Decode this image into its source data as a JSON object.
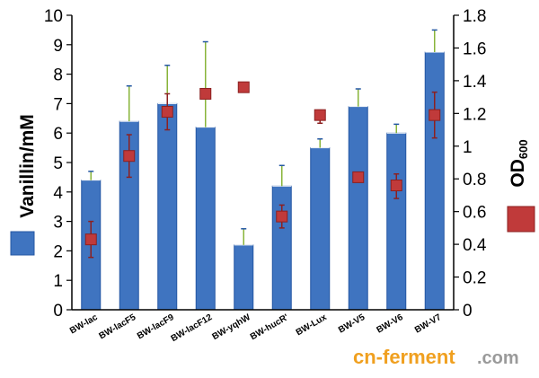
{
  "chart_data": {
    "type": "bar",
    "categories": [
      "BW-lac",
      "BW-lacF5",
      "BW-lacF9",
      "BW-lacF12",
      "BW-yqhW",
      "BW-hucR'",
      "BW-Lux",
      "BW-V5",
      "BW-V6",
      "BW-V7"
    ],
    "series": [
      {
        "name": "Vanillin/mM",
        "axis": "left",
        "render": "bar",
        "values": [
          4.4,
          6.4,
          7.0,
          6.2,
          2.2,
          4.2,
          5.5,
          6.9,
          6.0,
          8.75
        ],
        "error_upper": [
          4.7,
          7.6,
          8.3,
          9.1,
          2.75,
          4.9,
          5.8,
          7.5,
          6.3,
          9.5
        ],
        "error_lower": [
          4.4,
          6.4,
          7.0,
          6.2,
          2.2,
          4.2,
          5.5,
          6.9,
          6.0,
          8.75
        ]
      },
      {
        "name": "OD600",
        "axis": "right",
        "render": "marker",
        "values": [
          0.43,
          0.94,
          1.21,
          1.32,
          1.36,
          0.57,
          1.19,
          0.81,
          0.76,
          1.19
        ],
        "error_upper": [
          0.54,
          1.07,
          1.32,
          null,
          null,
          0.64,
          1.22,
          null,
          0.83,
          1.33
        ],
        "error_lower": [
          0.32,
          0.81,
          1.1,
          null,
          null,
          0.5,
          1.14,
          null,
          0.68,
          1.05
        ]
      }
    ],
    "ylabel": "Vanillin/mM",
    "ylim": [
      0,
      10
    ],
    "yticks": [
      "0",
      "1",
      "2",
      "3",
      "4",
      "5",
      "6",
      "7",
      "8",
      "9",
      "10"
    ],
    "y2label": "OD",
    "y2label_sub": "600",
    "y2lim": [
      0,
      1.8
    ],
    "y2ticks": [
      "0",
      "0.2",
      "0.4",
      "0.6",
      "0.8",
      "1",
      "1.2",
      "1.4",
      "1.6",
      "1.8"
    ],
    "grid": false,
    "legend": "left-and-right-outside",
    "colors": {
      "bar": "#3f74c0",
      "bar_dark": "#2457a3",
      "bar_error": "#88b43a",
      "marker": "#c03a3a",
      "marker_error": "#8c2020"
    }
  },
  "watermark": {
    "text_a": "cn-ferment",
    "text_b": ".com"
  }
}
